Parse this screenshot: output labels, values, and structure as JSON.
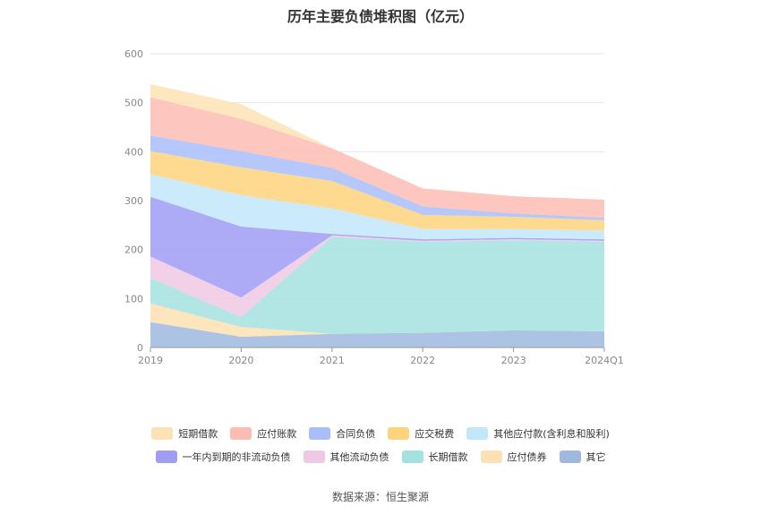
{
  "chart_data": {
    "type": "area",
    "stacked": true,
    "title": "历年主要负债堆积图（亿元）",
    "xlabel": "",
    "ylabel": "",
    "ylim": [
      0,
      600
    ],
    "yticks": [
      0,
      100,
      200,
      300,
      400,
      500,
      600
    ],
    "categories": [
      "2019",
      "2020",
      "2021",
      "2022",
      "2023",
      "2024Q1"
    ],
    "grid": true,
    "legend_position": "bottom",
    "series": [
      {
        "name": "其它",
        "color": "#9fb9de",
        "values": [
          52,
          22,
          28,
          30,
          35,
          33
        ]
      },
      {
        "name": "应付债券",
        "color": "#fde0b3",
        "values": [
          38,
          20,
          0,
          0,
          0,
          0
        ]
      },
      {
        "name": "长期借款",
        "color": "#a3e2df",
        "values": [
          52,
          20,
          198,
          186,
          184,
          183
        ]
      },
      {
        "name": "其他流动负债",
        "color": "#efc8e4",
        "values": [
          44,
          40,
          3,
          2,
          2,
          2
        ]
      },
      {
        "name": "一年内到期的非流动负债",
        "color": "#9f9cf4",
        "values": [
          122,
          145,
          3,
          3,
          3,
          3
        ]
      },
      {
        "name": "其他应付款(含利息和股利)",
        "color": "#c2e7fb",
        "values": [
          46,
          64,
          52,
          21,
          18,
          18
        ]
      },
      {
        "name": "应交税费",
        "color": "#fdd47c",
        "values": [
          47,
          57,
          56,
          29,
          25,
          21
        ]
      },
      {
        "name": "合同负债",
        "color": "#a8bdfa",
        "values": [
          32,
          33,
          27,
          17,
          7,
          5
        ]
      },
      {
        "name": "应付账款",
        "color": "#fdbcb3",
        "values": [
          78,
          66,
          40,
          37,
          35,
          37
        ]
      },
      {
        "name": "短期借款",
        "color": "#fde3b3",
        "values": [
          27,
          30,
          0,
          0,
          0,
          0
        ]
      }
    ],
    "legend_rows": [
      [
        "短期借款",
        "应付账款",
        "合同负债",
        "应交税费",
        "其他应付款(含利息和股利)"
      ],
      [
        "一年内到期的非流动负债",
        "其他流动负债",
        "长期借款",
        "应付债券",
        "其它"
      ]
    ]
  },
  "source_note": "数据来源：恒生聚源"
}
